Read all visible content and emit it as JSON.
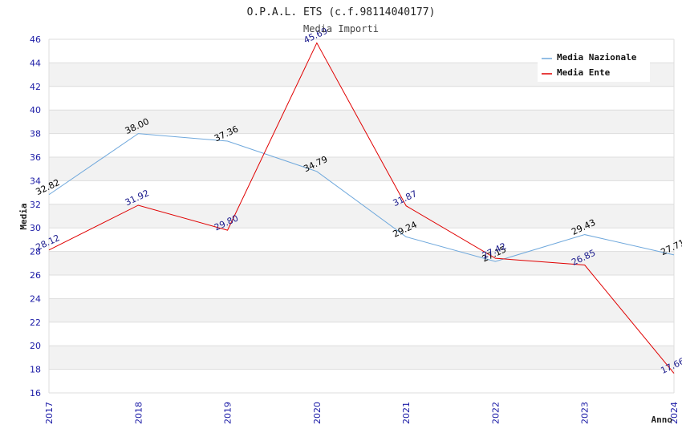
{
  "chart_data": {
    "type": "line",
    "title": "O.P.A.L. ETS (c.f.98114040177)",
    "subtitle": "Media Importi",
    "xlabel": "Anno",
    "ylabel": "Media",
    "ylim": [
      16,
      46
    ],
    "ytick_step": 2,
    "categories": [
      "2017",
      "2018",
      "2019",
      "2020",
      "2021",
      "2022",
      "2023",
      "2024"
    ],
    "series": [
      {
        "name": "Media Nazionale",
        "color": "#6fa8dc",
        "label_color": "#000000",
        "values": [
          32.82,
          38.0,
          37.36,
          34.79,
          29.24,
          27.15,
          29.43,
          27.71
        ]
      },
      {
        "name": "Media Ente",
        "color": "#e00000",
        "label_color": "#1a1a8c",
        "values": [
          28.12,
          31.92,
          29.8,
          45.69,
          31.87,
          27.42,
          26.85,
          17.66
        ]
      }
    ],
    "legend_position": "top-right",
    "grid": true,
    "band_color": "#f2f2f2",
    "grid_color": "#dddddd"
  }
}
